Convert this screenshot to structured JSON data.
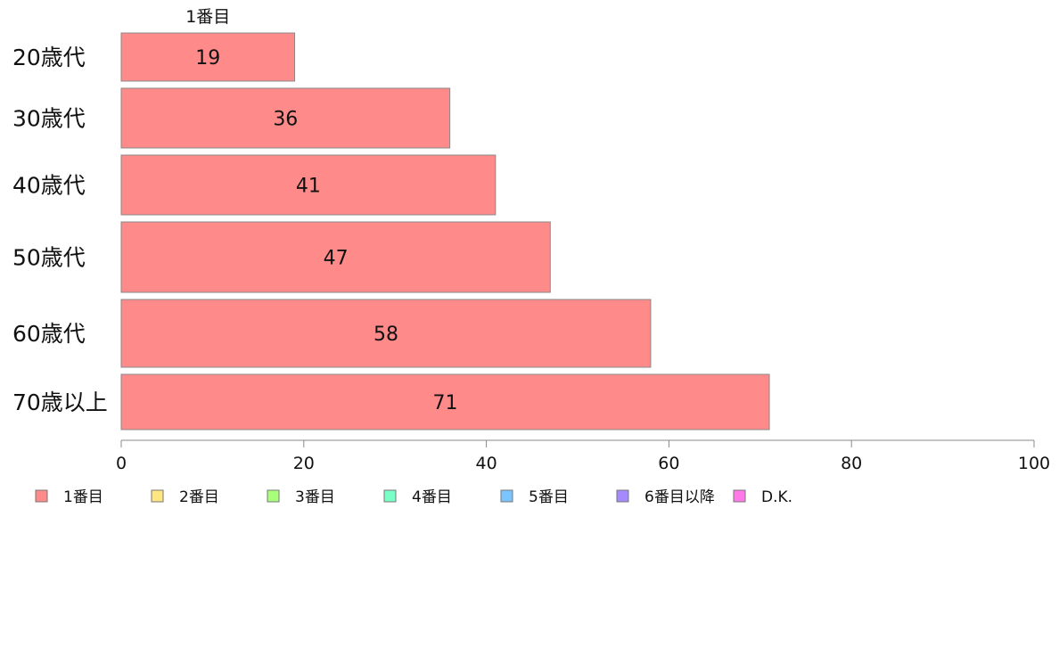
{
  "chart_data": {
    "type": "bar",
    "orientation": "horizontal",
    "categories": [
      "20歳代",
      "30歳代",
      "40歳代",
      "50歳代",
      "60歳代",
      "70歳以上"
    ],
    "series": [
      {
        "name": "1番目",
        "color": "#ff8a8a",
        "values": [
          19,
          36,
          41,
          47,
          58,
          71
        ]
      }
    ],
    "top_label": "1番目",
    "xlim": [
      0,
      100
    ],
    "xticks": [
      0,
      20,
      40,
      60,
      80,
      100
    ],
    "grid": false,
    "legend": {
      "position": "bottom-left",
      "items": [
        {
          "label": "1番目",
          "color": "#ff8a8a"
        },
        {
          "label": "2番目",
          "color": "#ffe680"
        },
        {
          "label": "3番目",
          "color": "#a8ff7a"
        },
        {
          "label": "4番目",
          "color": "#7affc6"
        },
        {
          "label": "5番目",
          "color": "#7ac4ff"
        },
        {
          "label": "6番目以降",
          "color": "#a58aff"
        },
        {
          "label": "D.K.",
          "color": "#ff7ae6"
        }
      ]
    }
  }
}
